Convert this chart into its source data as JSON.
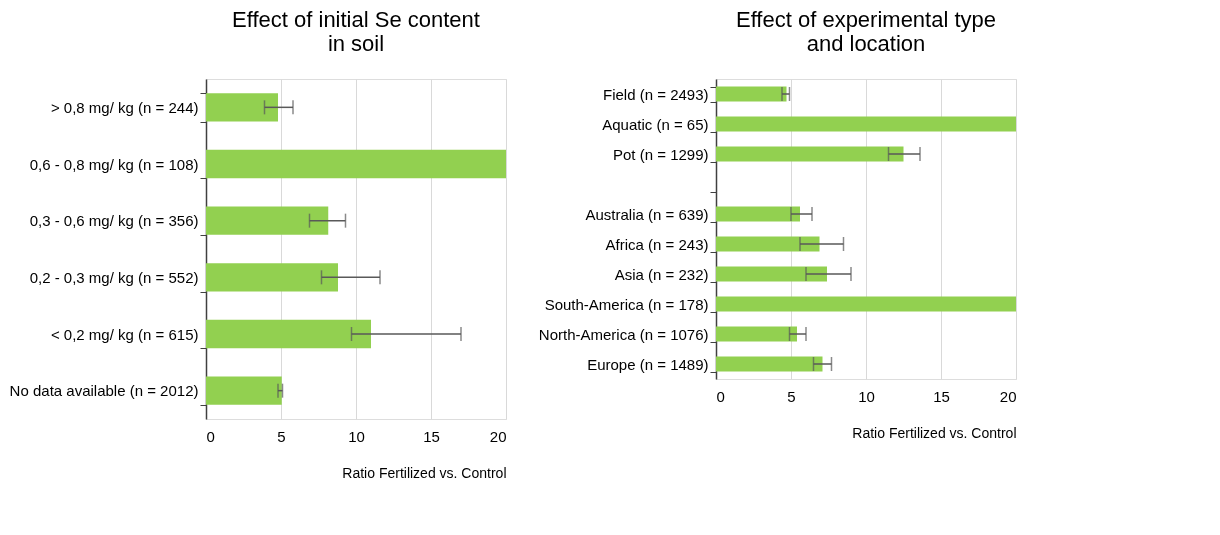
{
  "chart_data": [
    {
      "type": "bar",
      "orientation": "horizontal",
      "title": "Effect of initial Se content in soil",
      "xlabel": "Ratio Fertilized vs. Control",
      "categories": [
        "> 0,8 mg/ kg (n = 244)",
        "0,6 - 0,8 mg/ kg (n = 108)",
        "0,3 - 0,6 mg/ kg (n = 356)",
        "0,2 - 0,3 mg/ kg (n = 552)",
        "< 0,2 mg/ kg (n = 615)",
        "No data available (n = 2012)"
      ],
      "values": [
        4.8,
        20,
        8.15,
        8.8,
        11.0,
        5.05
      ],
      "errors": [
        [
          3.9,
          5.8
        ],
        null,
        [
          6.9,
          9.3
        ],
        [
          7.7,
          11.6
        ],
        [
          9.7,
          17.0
        ],
        [
          4.8,
          5.1
        ]
      ],
      "color": "#92d050",
      "xlim": [
        0,
        20
      ],
      "xticks": [
        0,
        5,
        10,
        15,
        20
      ],
      "grid": "x"
    },
    {
      "type": "bar",
      "orientation": "horizontal",
      "title": "Effect of experimental type and location",
      "xlabel": "Ratio Fertilized vs. Control",
      "categories": [
        "Field (n = 2493)",
        "Aquatic (n = 65)",
        "Pot (n = 1299)",
        null,
        "Australia (n = 639)",
        "Africa (n = 243)",
        "Asia (n = 232)",
        "South-America (n = 178)",
        "North-America (n = 1076)",
        "Europe (n = 1489)"
      ],
      "values": [
        4.7,
        20,
        12.5,
        null,
        5.6,
        6.9,
        7.4,
        20,
        5.4,
        7.1
      ],
      "errors": [
        [
          4.4,
          4.9
        ],
        null,
        [
          11.5,
          13.6
        ],
        null,
        [
          5.0,
          6.4
        ],
        [
          5.6,
          8.5
        ],
        [
          6.0,
          9.0
        ],
        null,
        [
          4.9,
          6.0
        ],
        [
          6.5,
          7.7
        ]
      ],
      "color": "#92d050",
      "xlim": [
        0,
        20
      ],
      "xticks": [
        0,
        5,
        10,
        15,
        20
      ],
      "grid": "x"
    }
  ]
}
